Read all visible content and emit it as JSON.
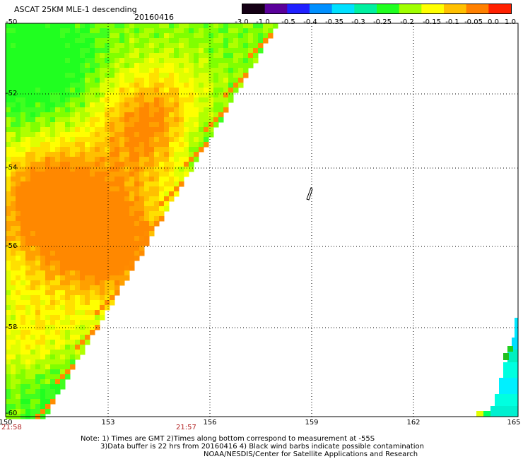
{
  "header": {
    "title": "ASCAT 25KM MLE-1 descending",
    "date": "20160416"
  },
  "colorbar": {
    "labels": [
      "-3.0",
      "-1.0",
      "-0.5",
      "-0.4",
      "-0.35",
      "-0.3",
      "-0.25",
      "-0.2",
      "-0.15",
      "-0.1",
      "-0.05",
      "0.0",
      "1.0"
    ],
    "colors": [
      "#140014",
      "#5a009a",
      "#2020ff",
      "#0090ff",
      "#00e0ff",
      "#00f0a0",
      "#20ff20",
      "#a0ff00",
      "#ffff00",
      "#ffc000",
      "#ff8000",
      "#ff2000"
    ]
  },
  "map": {
    "lat_labels": [
      "-50",
      "-52",
      "-54",
      "-56",
      "-58",
      "-60"
    ],
    "lon_labels": [
      "150",
      "153",
      "156",
      "159",
      "162",
      "165"
    ],
    "times": [
      "21:58",
      "21:57"
    ]
  },
  "notes": [
    "Note: 1) Times are GMT 2)Times along bottom correspond to measurement at -55S",
    "3)Data buffer is 22 hrs from 20160416 4) Black wind barbs indicate possible contamination",
    "NOAA/NESDIS/Center for Satellite Applications and Research"
  ]
}
